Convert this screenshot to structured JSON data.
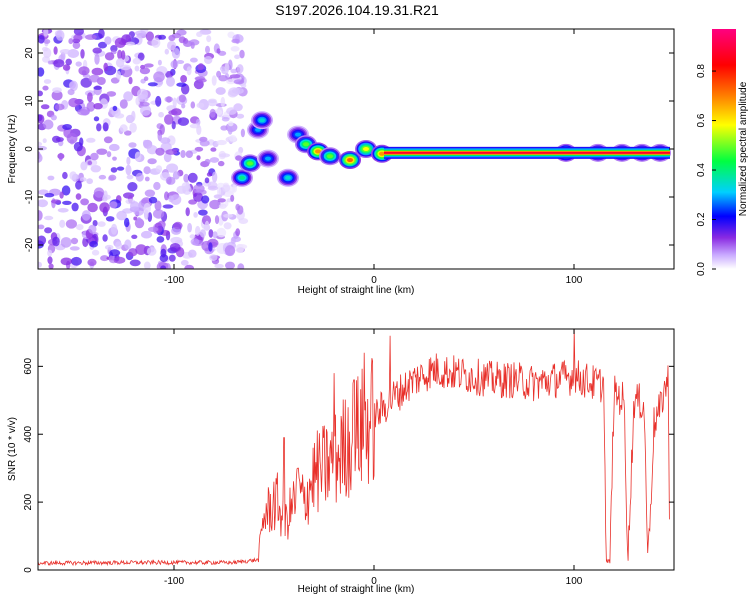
{
  "chart_data": [
    {
      "type": "heatmap",
      "title": "S197.2026.104.19.31.R21",
      "xlabel": "Height of straight line (km)",
      "ylabel": "Frequency (Hz)",
      "xlim": [
        -168,
        150
      ],
      "ylim": [
        -25,
        25
      ],
      "x_ticks": [
        -100,
        0,
        100
      ],
      "y_ticks": [
        -20,
        -10,
        0,
        10,
        20
      ],
      "noise_region": {
        "x": [
          -168,
          -65
        ],
        "y": [
          -25,
          25
        ]
      },
      "carrier_line": {
        "x_start": 5,
        "x_end": 148,
        "frequency": -0.8
      },
      "colorbar": {
        "label": "Normalized spectral amplitude",
        "ticks": [
          0.0,
          0.2,
          0.4,
          0.6,
          0.8
        ],
        "range": [
          0,
          0.97
        ],
        "colors": [
          "#ffffff",
          "#c8a8ff",
          "#8a2be2",
          "#0000ff",
          "#00d0ff",
          "#00ff40",
          "#ffff00",
          "#ff8000",
          "#ff0000",
          "#ff0080"
        ]
      },
      "features": [
        {
          "x": -66,
          "y": -6,
          "amp": 0.4
        },
        {
          "x": -62,
          "y": -3,
          "amp": 0.5
        },
        {
          "x": -58,
          "y": 4,
          "amp": 0.3
        },
        {
          "x": -56,
          "y": 6,
          "amp": 0.35
        },
        {
          "x": -53,
          "y": -2,
          "amp": 0.3
        },
        {
          "x": -43,
          "y": -6,
          "amp": 0.35
        },
        {
          "x": -38,
          "y": 3,
          "amp": 0.3
        },
        {
          "x": -34,
          "y": 1,
          "amp": 0.5
        },
        {
          "x": -28,
          "y": -0.5,
          "amp": 0.7
        },
        {
          "x": -22,
          "y": -1.5,
          "amp": 0.5
        },
        {
          "x": -12,
          "y": -2.3,
          "amp": 0.75
        },
        {
          "x": -4,
          "y": 0,
          "amp": 0.6
        },
        {
          "x": 4,
          "y": -1,
          "amp": 0.7
        },
        {
          "x": 96,
          "y": -0.8,
          "amp": 0.6
        },
        {
          "x": 112,
          "y": -0.8,
          "amp": 0.5
        },
        {
          "x": 124,
          "y": -0.8,
          "amp": 0.5
        },
        {
          "x": 134,
          "y": -0.8,
          "amp": 0.5
        },
        {
          "x": 143,
          "y": -0.8,
          "amp": 0.5
        }
      ]
    },
    {
      "type": "line",
      "title": "",
      "xlabel": "Height of straight line (km)",
      "ylabel": "SNR (10 * v/v)",
      "xlim": [
        -168,
        150
      ],
      "ylim": [
        0,
        710
      ],
      "x_ticks": [
        -100,
        0,
        100
      ],
      "y_ticks": [
        0,
        200,
        400,
        600
      ],
      "series_color": "#e8302a",
      "series": [
        {
          "name": "SNR",
          "x": [
            -168,
            -120,
            -70,
            -58,
            -55,
            -52,
            -48,
            -45,
            -42,
            -38,
            -35,
            -30,
            -25,
            -20,
            -15,
            -10,
            -5,
            0,
            10,
            20,
            30,
            40,
            50,
            60,
            70,
            80,
            90,
            100,
            110,
            115,
            116,
            118,
            120,
            125,
            127,
            130,
            135,
            137,
            140,
            143,
            145,
            147,
            148
          ],
          "y": [
            20,
            22,
            22,
            30,
            160,
            180,
            200,
            130,
            170,
            230,
            200,
            280,
            300,
            320,
            360,
            400,
            420,
            450,
            510,
            560,
            590,
            580,
            570,
            560,
            560,
            550,
            560,
            570,
            550,
            545,
            25,
            25,
            520,
            500,
            25,
            500,
            490,
            25,
            430,
            470,
            530,
            560,
            50
          ]
        }
      ],
      "spikes": [
        {
          "x": -50,
          "y": 260
        },
        {
          "x": -45,
          "y": 390
        },
        {
          "x": -38,
          "y": 300
        },
        {
          "x": -20,
          "y": 580
        },
        {
          "x": -10,
          "y": 560
        },
        {
          "x": -5,
          "y": 640
        },
        {
          "x": 8,
          "y": 690
        },
        {
          "x": 100,
          "y": 710
        }
      ]
    }
  ]
}
